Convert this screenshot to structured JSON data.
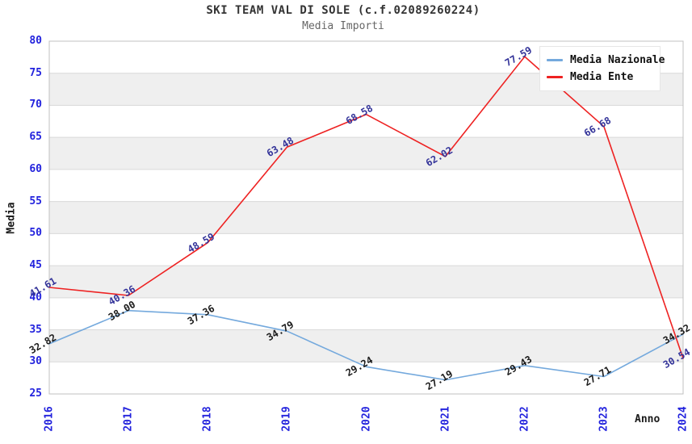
{
  "header": {
    "title": "SKI TEAM VAL DI SOLE (c.f.02089260224)",
    "subtitle": "Media Importi"
  },
  "chart_data": {
    "type": "line",
    "title": "SKI TEAM VAL DI SOLE (c.f.02089260224)",
    "subtitle": "Media Importi",
    "xlabel": "Anno",
    "ylabel": "Media",
    "x": [
      2016,
      2017,
      2018,
      2019,
      2020,
      2021,
      2022,
      2023,
      2024
    ],
    "series": [
      {
        "name": "Media Nazionale",
        "color": "#74a9dd",
        "label_color": "#1a1a1a",
        "values": [
          32.82,
          38.0,
          37.36,
          34.79,
          29.24,
          27.19,
          29.43,
          27.71,
          34.32
        ]
      },
      {
        "name": "Media Ente",
        "color": "#ee2222",
        "label_color": "#333399",
        "values": [
          41.61,
          40.36,
          48.59,
          63.48,
          68.58,
          62.02,
          77.59,
          66.68,
          30.54
        ]
      }
    ],
    "ylim": [
      25,
      80
    ],
    "yticks": [
      25,
      30,
      35,
      40,
      45,
      50,
      55,
      60,
      65,
      70,
      75,
      80
    ],
    "ytick_step": 5,
    "grid": "horizontal-bands-every-5-units",
    "legend_position": "top-right",
    "value_label_decimals": 2,
    "styles": {
      "tick_label_color": "#2222dd",
      "band_color": "#efefef",
      "grid_color": "#d9d9d9",
      "border_color": "#c0c0c0",
      "title_color": "#333333",
      "subtitle_color": "#666666",
      "axis_title_color": "#1a1a1a",
      "legend_text_color": "#111111",
      "background_color": "#ffffff"
    }
  }
}
